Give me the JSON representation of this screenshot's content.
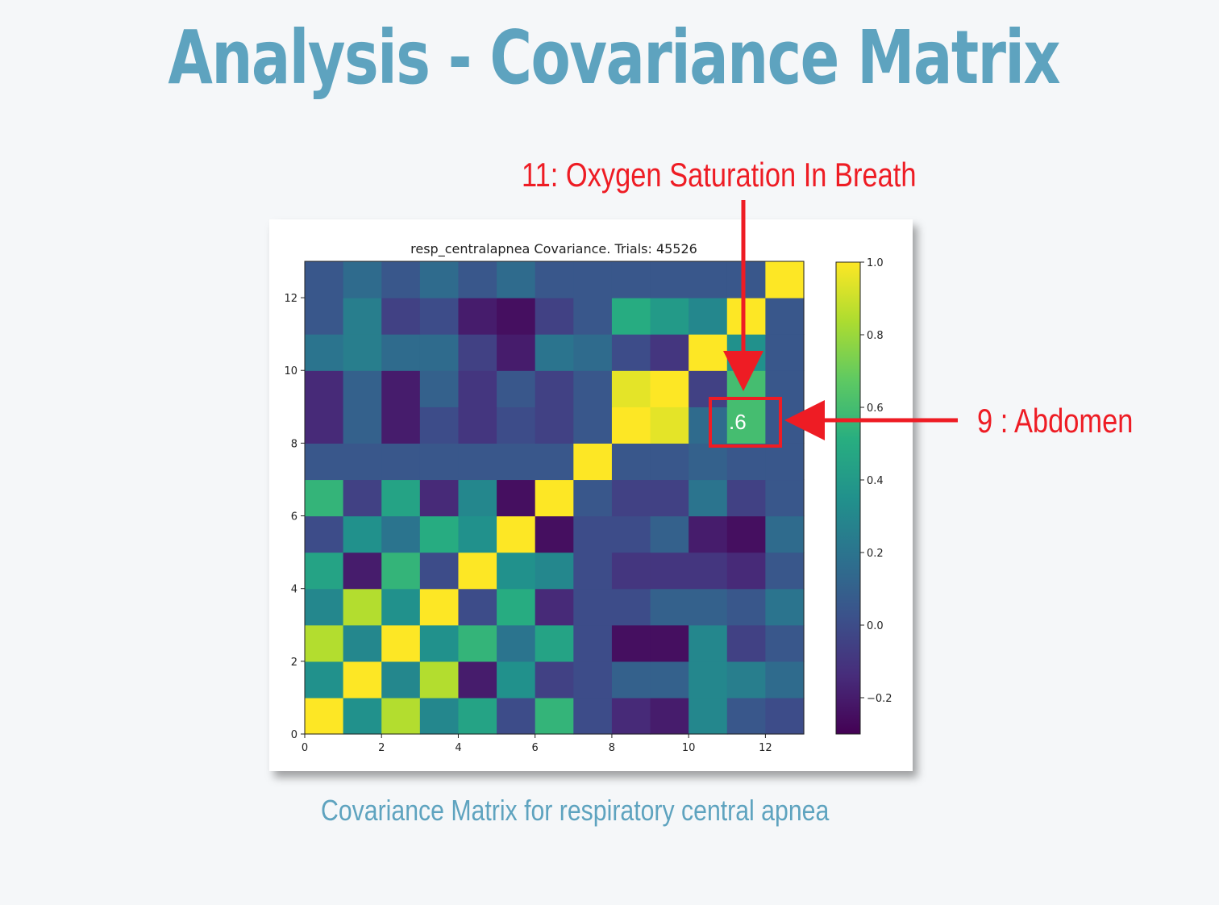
{
  "slide": {
    "title": "Analysis - Covariance Matrix",
    "caption": "Covariance Matrix for respiratory central apnea"
  },
  "annotations": {
    "top_callout": "11: Oxygen Saturation In Breath",
    "side_callout": "9 : Abdomen",
    "highlight_value": ".6",
    "highlight_color": "#ee1c24"
  },
  "chart_data": {
    "type": "heatmap",
    "title": "resp_centralapnea Covariance. Trials: 45526",
    "colormap": "viridis",
    "x_ticks": [
      "0",
      "2",
      "4",
      "6",
      "8",
      "10",
      "12"
    ],
    "y_ticks": [
      "0",
      "2",
      "4",
      "6",
      "8",
      "10",
      "12"
    ],
    "colorbar": {
      "min": -0.3,
      "max": 1.0,
      "ticks": [
        "1.0",
        "0.8",
        "0.6",
        "0.4",
        "0.2",
        "0.0",
        "−0.2"
      ]
    },
    "matrix": [
      [
        1.0,
        0.35,
        0.85,
        0.3,
        0.45,
        0.0,
        0.55,
        0.0,
        -0.15,
        -0.2,
        0.3,
        0.05,
        0.0
      ],
      [
        0.35,
        1.0,
        0.3,
        0.85,
        -0.2,
        0.35,
        -0.05,
        0.0,
        0.1,
        0.1,
        0.3,
        0.25,
        0.15
      ],
      [
        0.85,
        0.3,
        1.0,
        0.35,
        0.55,
        0.2,
        0.45,
        0.0,
        -0.25,
        -0.25,
        0.3,
        -0.05,
        0.05
      ],
      [
        0.3,
        0.85,
        0.35,
        1.0,
        0.0,
        0.5,
        -0.15,
        0.0,
        0.0,
        0.1,
        0.1,
        0.05,
        0.2
      ],
      [
        0.45,
        -0.2,
        0.55,
        0.0,
        1.0,
        0.35,
        0.3,
        0.0,
        -0.1,
        -0.1,
        -0.1,
        -0.15,
        0.05
      ],
      [
        0.0,
        0.35,
        0.2,
        0.5,
        0.35,
        1.0,
        -0.25,
        0.0,
        0.0,
        0.1,
        -0.2,
        -0.25,
        0.15
      ],
      [
        0.55,
        -0.05,
        0.45,
        -0.15,
        0.3,
        -0.25,
        1.0,
        0.05,
        -0.05,
        -0.05,
        0.2,
        -0.05,
        0.05
      ],
      [
        0.05,
        0.05,
        0.05,
        0.05,
        0.05,
        0.05,
        0.05,
        1.0,
        0.05,
        0.05,
        0.1,
        0.05,
        0.05
      ],
      [
        -0.15,
        0.1,
        -0.2,
        0.0,
        -0.1,
        0.0,
        -0.05,
        0.05,
        1.0,
        0.95,
        0.15,
        0.6,
        0.05
      ],
      [
        -0.15,
        0.1,
        -0.2,
        0.1,
        -0.1,
        0.05,
        -0.05,
        0.05,
        0.95,
        1.0,
        -0.05,
        0.6,
        0.05
      ],
      [
        0.2,
        0.25,
        0.15,
        0.15,
        -0.05,
        -0.2,
        0.2,
        0.15,
        0.0,
        -0.1,
        1.0,
        0.35,
        0.05
      ],
      [
        0.05,
        0.25,
        -0.05,
        0.0,
        -0.2,
        -0.25,
        -0.05,
        0.05,
        0.5,
        0.4,
        0.3,
        1.0,
        0.05
      ],
      [
        0.05,
        0.15,
        0.05,
        0.15,
        0.05,
        0.15,
        0.05,
        0.05,
        0.05,
        0.05,
        0.05,
        0.05,
        1.0
      ]
    ]
  }
}
